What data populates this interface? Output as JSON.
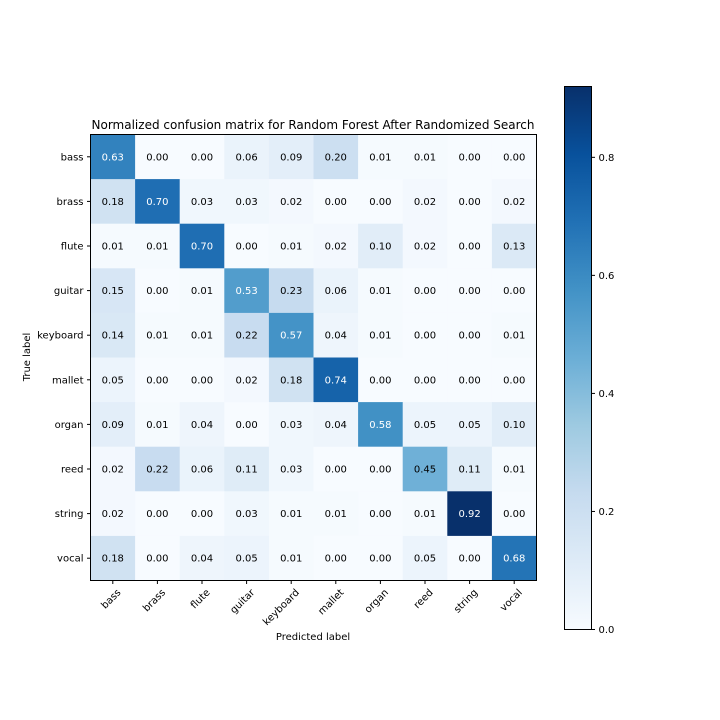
{
  "chart_data": {
    "type": "heatmap",
    "title": "Normalized confusion matrix for Random Forest After Randomized Search",
    "xlabel": "Predicted label",
    "ylabel": "True label",
    "x_categories": [
      "bass",
      "brass",
      "flute",
      "guitar",
      "keyboard",
      "mallet",
      "organ",
      "reed",
      "string",
      "vocal"
    ],
    "y_categories": [
      "bass",
      "brass",
      "flute",
      "guitar",
      "keyboard",
      "mallet",
      "organ",
      "reed",
      "string",
      "vocal"
    ],
    "values": [
      [
        0.63,
        0.0,
        0.0,
        0.06,
        0.09,
        0.2,
        0.01,
        0.01,
        0.0,
        0.0
      ],
      [
        0.18,
        0.7,
        0.03,
        0.03,
        0.02,
        0.0,
        0.0,
        0.02,
        0.0,
        0.02
      ],
      [
        0.01,
        0.01,
        0.7,
        0.0,
        0.01,
        0.02,
        0.1,
        0.02,
        0.0,
        0.13
      ],
      [
        0.15,
        0.0,
        0.01,
        0.53,
        0.23,
        0.06,
        0.01,
        0.0,
        0.0,
        0.0
      ],
      [
        0.14,
        0.01,
        0.01,
        0.22,
        0.57,
        0.04,
        0.01,
        0.0,
        0.0,
        0.01
      ],
      [
        0.05,
        0.0,
        0.0,
        0.02,
        0.18,
        0.74,
        0.0,
        0.0,
        0.0,
        0.0
      ],
      [
        0.09,
        0.01,
        0.04,
        0.0,
        0.03,
        0.04,
        0.58,
        0.05,
        0.05,
        0.1
      ],
      [
        0.02,
        0.22,
        0.06,
        0.11,
        0.03,
        0.0,
        0.0,
        0.45,
        0.11,
        0.01
      ],
      [
        0.02,
        0.0,
        0.0,
        0.03,
        0.01,
        0.01,
        0.0,
        0.01,
        0.92,
        0.0
      ],
      [
        0.18,
        0.0,
        0.04,
        0.05,
        0.01,
        0.0,
        0.0,
        0.05,
        0.0,
        0.68
      ]
    ],
    "value_format": "0.00",
    "colormap": "Blues",
    "color_range": [
      0.0,
      0.92
    ],
    "colorbar_ticks": [
      "0.0",
      "0.2",
      "0.4",
      "0.6",
      "0.8"
    ],
    "colorbar_tick_values": [
      0.0,
      0.2,
      0.4,
      0.6,
      0.8
    ],
    "text_threshold": 0.46,
    "text_color_dark": "#000000",
    "text_color_light": "#ffffff",
    "grid": false
  }
}
